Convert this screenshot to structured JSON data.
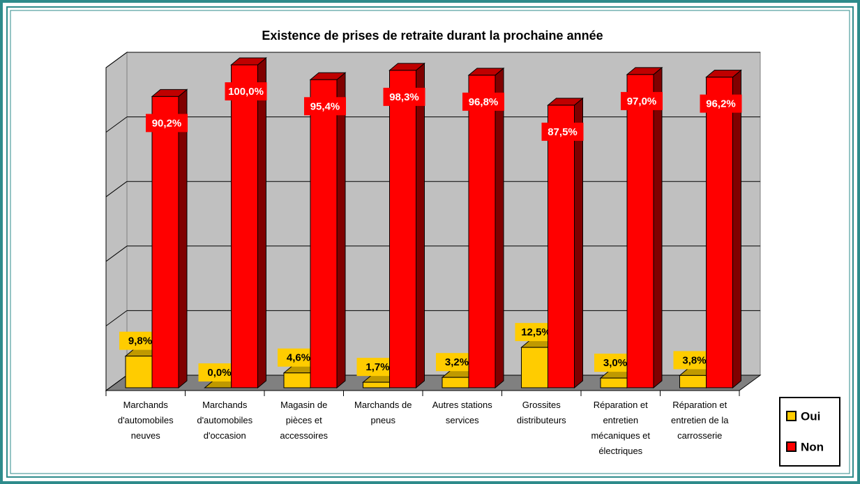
{
  "chart_data": {
    "type": "bar3d",
    "title": "Existence de prises de retraite durant la prochaine année",
    "categories": [
      "Marchands d'automobiles neuves",
      "Marchands d'automobiles d'occasion",
      "Magasin de pièces et accessoires",
      "Marchands de pneus",
      "Autres stations services",
      "Grossites distributeurs",
      "Réparation et entretien mécaniques et électriques",
      "Réparation et entretien de la carrosserie"
    ],
    "series": [
      {
        "name": "Oui",
        "color": "#ffcc00",
        "values": [
          9.8,
          0.0,
          4.6,
          1.7,
          3.2,
          12.5,
          3.0,
          3.8
        ],
        "value_labels": [
          "9,8%",
          "0,0%",
          "4,6%",
          "1,7%",
          "3,2%",
          "12,5%",
          "3,0%",
          "3,8%"
        ]
      },
      {
        "name": "Non",
        "color": "#ff0000",
        "values": [
          90.2,
          100.0,
          95.4,
          98.3,
          96.8,
          87.5,
          97.0,
          96.2
        ],
        "value_labels": [
          "90,2%",
          "100,0%",
          "95,4%",
          "98,3%",
          "96,8%",
          "87,5%",
          "97,0%",
          "96,2%"
        ]
      }
    ],
    "ylim": [
      0,
      100
    ],
    "yticks": [
      0,
      20,
      40,
      60,
      80,
      100
    ],
    "grid": true,
    "legend": "right"
  }
}
